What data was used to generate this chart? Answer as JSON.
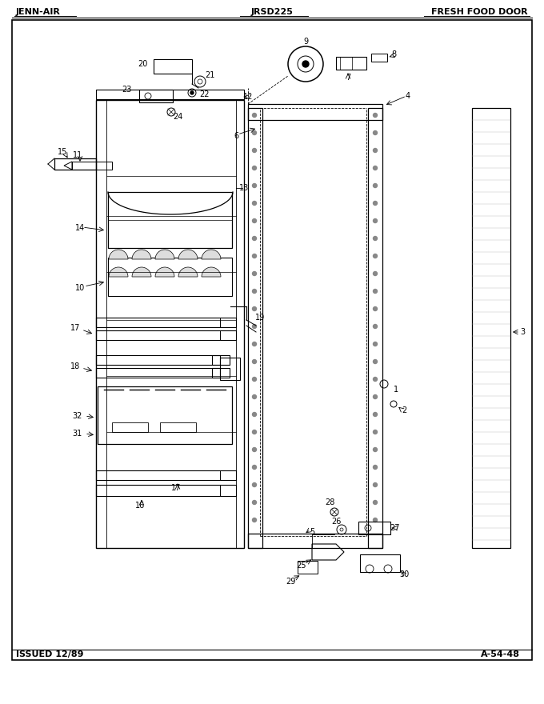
{
  "title_left": "JENN-AIR",
  "title_center": "JRSD225",
  "title_right": "FRESH FOOD DOOR",
  "footer_left": "ISSUED 12/89",
  "footer_right": "A-54-48",
  "bg_color": "#ffffff",
  "line_color": "#000000",
  "font_color": "#000000"
}
